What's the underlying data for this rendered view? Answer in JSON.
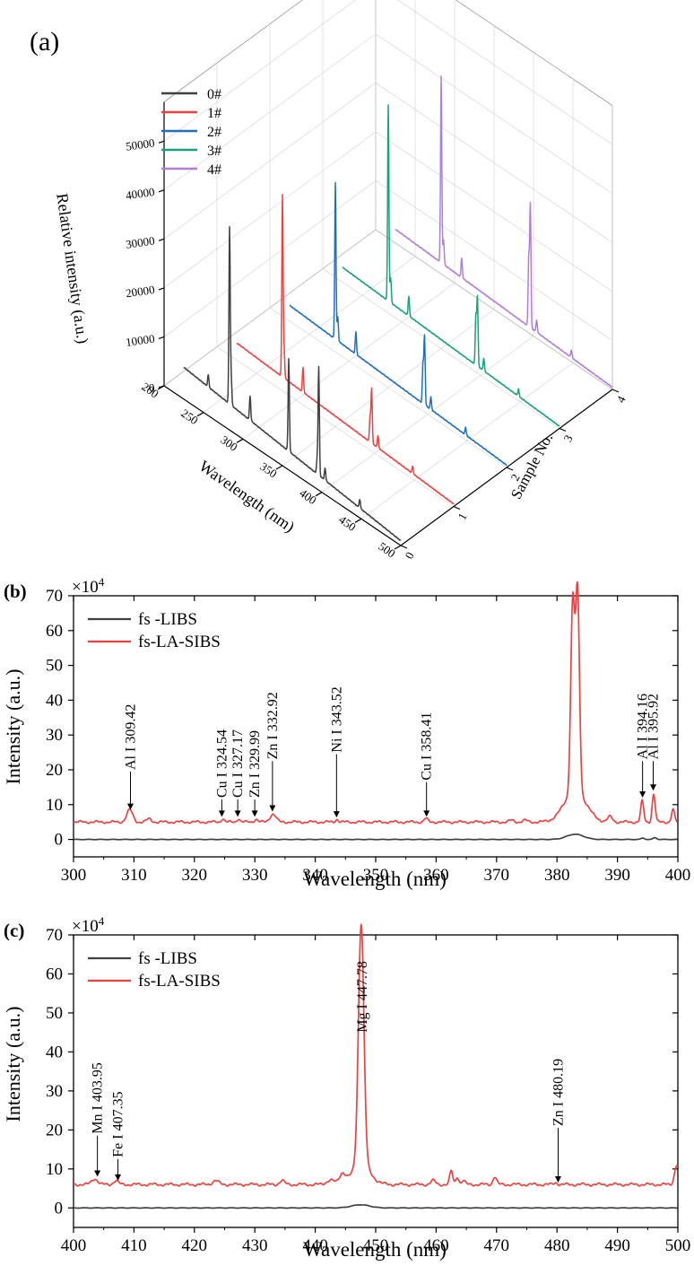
{
  "colors": {
    "s0": "#404040",
    "s1": "#ef4040",
    "s2": "#1f6fc0",
    "s3": "#16a37a",
    "s4": "#b07ed8",
    "fs_libs": "#404040",
    "fs_la_sibs": "#ef4040"
  },
  "chart_data": [
    {
      "id": "a",
      "panel_label": "(a)",
      "type": "line",
      "projection": "3d-waterfall",
      "xlabel": "Wavelength (nm)",
      "ylabel": "Sample No.",
      "zlabel": "Relative intensity (a.u.)",
      "xlim": [
        200,
        500
      ],
      "ylim": [
        0,
        4
      ],
      "zlim": [
        0,
        55000
      ],
      "x_ticks": [
        "200",
        "250",
        "300",
        "350",
        "400",
        "450",
        "500"
      ],
      "y_ticks": [
        "0",
        "1",
        "2",
        "3",
        "4"
      ],
      "z_ticks": [
        "0",
        "10000",
        "20000",
        "30000",
        "40000",
        "50000"
      ],
      "grid": true,
      "legend": "top-left",
      "series": [
        {
          "name": "0#",
          "sample": 0,
          "baseline": 6500,
          "peaks": [
            [
              256,
              2500
            ],
            [
              283,
              36000
            ],
            [
              285,
              6000
            ],
            [
              309,
              5000
            ],
            [
              358,
              19000
            ],
            [
              394,
              3000
            ],
            [
              396,
              22000
            ],
            [
              404,
              2500
            ],
            [
              448,
              1800
            ]
          ]
        },
        {
          "name": "1#",
          "sample": 1,
          "baseline": 3500,
          "peaks": [
            [
              283,
              37000
            ],
            [
              285,
              6000
            ],
            [
              309,
              5000
            ],
            [
              394,
              5000
            ],
            [
              396,
              11000
            ],
            [
              404,
              2500
            ],
            [
              448,
              1500
            ]
          ]
        },
        {
          "name": "2#",
          "sample": 2,
          "baseline": 3200,
          "peaks": [
            [
              283,
              32000
            ],
            [
              286,
              5000
            ],
            [
              309,
              4500
            ],
            [
              394,
              8000
            ],
            [
              396,
              14000
            ],
            [
              404,
              2500
            ],
            [
              448,
              1500
            ]
          ]
        },
        {
          "name": "3#",
          "sample": 3,
          "baseline": 3000,
          "peaks": [
            [
              283,
              40000
            ],
            [
              286,
              5000
            ],
            [
              309,
              4000
            ],
            [
              394,
              10000
            ],
            [
              396,
              14000
            ],
            [
              404,
              2500
            ],
            [
              448,
              1500
            ]
          ]
        },
        {
          "name": "4#",
          "sample": 4,
          "baseline": 2800,
          "peaks": [
            [
              283,
              38000
            ],
            [
              286,
              5000
            ],
            [
              309,
              4000
            ],
            [
              394,
              14000
            ],
            [
              396,
              25000
            ],
            [
              404,
              2500
            ],
            [
              448,
              1500
            ]
          ]
        }
      ]
    },
    {
      "id": "b",
      "panel_label": "(b)",
      "type": "line",
      "multiplier": "×10",
      "multiplier_exp": "4",
      "xlabel": "Wavelength (nm)",
      "ylabel": "Intensity (a.u.)",
      "xlim": [
        300,
        400
      ],
      "ylim": [
        -5,
        70
      ],
      "x_ticks": [
        "300",
        "310",
        "320",
        "330",
        "340",
        "350",
        "360",
        "370",
        "380",
        "390",
        "400"
      ],
      "y_ticks": [
        "0",
        "10",
        "20",
        "30",
        "40",
        "50",
        "60",
        "70"
      ],
      "legend": "top-left",
      "series": [
        {
          "name": "fs -LIBS",
          "baseline": 0,
          "peaks": [
            [
              383,
              1.5,
              1.4
            ],
            [
              394.2,
              0.4,
              0.3
            ],
            [
              396.2,
              0.5,
              0.3
            ]
          ]
        },
        {
          "name": "fs-LA-SIBS",
          "baseline": 5,
          "peaks": [
            [
              309.3,
              3.5,
              0.5
            ],
            [
              312.5,
              0.9,
              0.4
            ],
            [
              324.7,
              1.0,
              0.25
            ],
            [
              327.3,
              1.0,
              0.25
            ],
            [
              330.2,
              0.8,
              0.3
            ],
            [
              333,
              2.3,
              0.5
            ],
            [
              343.6,
              0.8,
              0.25
            ],
            [
              358.3,
              1.0,
              0.3
            ],
            [
              372.5,
              0.5,
              0.4
            ],
            [
              374.7,
              0.5,
              0.4
            ],
            [
              382.6,
              54,
              0.32
            ],
            [
              383.4,
              57,
              0.32
            ],
            [
              383,
              9,
              1.8
            ],
            [
              388.8,
              1.5,
              0.4
            ],
            [
              394.1,
              6,
              0.25
            ],
            [
              396,
              8,
              0.25
            ],
            [
              399.2,
              3.5,
              0.25
            ]
          ]
        }
      ],
      "annotations": [
        {
          "text": "Al I 309.42",
          "x": 309.42,
          "y_arrow": 8.5,
          "y_text": 20
        },
        {
          "text": "Cu I 324.54",
          "x": 324.54,
          "y_arrow": 6.5,
          "y_text": 12
        },
        {
          "text": "Cu I 327.17",
          "x": 327.17,
          "y_arrow": 6.5,
          "y_text": 12
        },
        {
          "text": "Zn I 329.99",
          "x": 329.99,
          "y_arrow": 6.5,
          "y_text": 12
        },
        {
          "text": "Zn I 332.92",
          "x": 332.92,
          "y_arrow": 8,
          "y_text": 23
        },
        {
          "text": "Ni I 343.52",
          "x": 343.52,
          "y_arrow": 6.3,
          "y_text": 25
        },
        {
          "text": "Cu I 358.41",
          "x": 358.41,
          "y_arrow": 6.5,
          "y_text": 17
        },
        {
          "text": "Al I 394.16",
          "x": 394.16,
          "y_arrow": 12,
          "y_text": 23
        },
        {
          "text": "Al I 395.92",
          "x": 395.92,
          "y_arrow": 14,
          "y_text": 23
        }
      ]
    },
    {
      "id": "c",
      "panel_label": "(c)",
      "type": "line",
      "multiplier": "×10",
      "multiplier_exp": "4",
      "xlabel": "Wavelength (nm)",
      "ylabel": "Intensity (a.u.)",
      "xlim": [
        400,
        500
      ],
      "ylim": [
        -5,
        70
      ],
      "x_ticks": [
        "400",
        "410",
        "420",
        "430",
        "440",
        "450",
        "460",
        "470",
        "480",
        "490",
        "500"
      ],
      "y_ticks": [
        "0",
        "10",
        "20",
        "30",
        "40",
        "50",
        "60",
        "70"
      ],
      "legend": "top-left",
      "series": [
        {
          "name": "fs -LIBS",
          "baseline": 0,
          "peaks": [
            [
              447.5,
              0.8,
              1.5
            ]
          ]
        },
        {
          "name": "fs-LA-SIBS",
          "baseline": 6,
          "peaks": [
            [
              403.5,
              1.5,
              0.5
            ],
            [
              407,
              1.0,
              0.4
            ],
            [
              423.5,
              1.0,
              0.5
            ],
            [
              434.5,
              1.0,
              0.4
            ],
            [
              442.5,
              1.2,
              0.6
            ],
            [
              444.5,
              2.5,
              0.5
            ],
            [
              447.6,
              62,
              0.45
            ],
            [
              447.6,
              5,
              1.5
            ],
            [
              459.5,
              1.0,
              0.4
            ],
            [
              462.5,
              3.5,
              0.25
            ],
            [
              463.5,
              2.0,
              0.25
            ],
            [
              464.5,
              1.0,
              0.3
            ],
            [
              469.7,
              2.0,
              0.3
            ],
            [
              479.8,
              0.5,
              0.3
            ],
            [
              499.8,
              5,
              0.35
            ]
          ]
        }
      ],
      "annotations": [
        {
          "text": "Mn I 403.95",
          "x": 403.95,
          "y_arrow": 8,
          "y_text": 19
        },
        {
          "text": "Fe I 407.35",
          "x": 407.35,
          "y_arrow": 7,
          "y_text": 13
        },
        {
          "text": "Mg I 447.78",
          "x": 447.78,
          "y_arrow": null,
          "y_text": 45
        },
        {
          "text": "Zn I 480.19",
          "x": 480.19,
          "y_arrow": 6.5,
          "y_text": 21
        }
      ]
    }
  ]
}
